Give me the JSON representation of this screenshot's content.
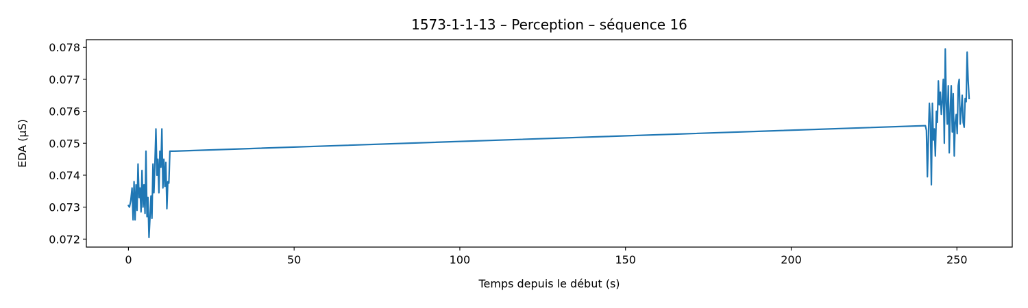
{
  "chart_data": {
    "type": "line",
    "title": "1573-1-1-13 – Perception – séquence 16",
    "xlabel": "Temps depuis le début (s)",
    "ylabel": "EDA (µS)",
    "xlim": [
      -12.7,
      266.7
    ],
    "ylim": [
      0.07175,
      0.07824
    ],
    "x_ticks": [
      0,
      50,
      100,
      150,
      200,
      250
    ],
    "y_ticks": [
      0.072,
      0.073,
      0.074,
      0.075,
      0.076,
      0.077,
      0.078
    ],
    "grid": false,
    "series": [
      {
        "color": "#1f77b4",
        "x": [
          0.0,
          0.3,
          0.7,
          1.1,
          1.4,
          1.7,
          2.0,
          2.3,
          2.6,
          2.9,
          3.2,
          3.5,
          3.8,
          4.1,
          4.4,
          4.7,
          5.0,
          5.3,
          5.6,
          5.9,
          6.2,
          6.5,
          6.8,
          7.1,
          7.4,
          7.7,
          8.0,
          8.3,
          8.6,
          8.9,
          9.2,
          9.5,
          9.8,
          10.1,
          10.4,
          10.7,
          11.0,
          11.3,
          11.6,
          11.9,
          12.2,
          12.5,
          12.8,
          13.1,
          13.4,
          240.5,
          240.8,
          241.1,
          241.4,
          241.7,
          242.0,
          242.3,
          242.6,
          242.9,
          243.2,
          243.5,
          243.8,
          244.1,
          244.4,
          244.7,
          245.0,
          245.3,
          245.6,
          245.9,
          246.2,
          246.5,
          246.8,
          247.1,
          247.4,
          247.7,
          248.0,
          248.3,
          248.6,
          248.9,
          249.2,
          249.5,
          249.8,
          250.1,
          250.4,
          250.7,
          251.0,
          251.3,
          251.6,
          251.9,
          252.2,
          252.5,
          252.8,
          253.1,
          253.4,
          253.7
        ],
        "y": [
          0.07305,
          0.073,
          0.0732,
          0.0736,
          0.0726,
          0.0738,
          0.0726,
          0.0737,
          0.0729,
          0.07435,
          0.0733,
          0.0736,
          0.07285,
          0.07415,
          0.073,
          0.0737,
          0.0728,
          0.07475,
          0.0727,
          0.0733,
          0.07205,
          0.07265,
          0.07335,
          0.07265,
          0.07435,
          0.07345,
          0.0744,
          0.07545,
          0.074,
          0.0745,
          0.07345,
          0.07475,
          0.07425,
          0.07545,
          0.0736,
          0.0745,
          0.07365,
          0.0744,
          0.07295,
          0.0738,
          0.07375,
          0.07475,
          0.07475,
          0.07475,
          0.07475,
          0.07555,
          0.0754,
          0.07395,
          0.0752,
          0.07625,
          0.07565,
          0.0737,
          0.07625,
          0.0751,
          0.07545,
          0.0746,
          0.076,
          0.07565,
          0.07695,
          0.0762,
          0.0766,
          0.0759,
          0.07635,
          0.077,
          0.075,
          0.07795,
          0.07625,
          0.0756,
          0.0768,
          0.0747,
          0.07605,
          0.0768,
          0.07535,
          0.07655,
          0.0746,
          0.07565,
          0.0759,
          0.0753,
          0.0768,
          0.077,
          0.0756,
          0.076,
          0.0765,
          0.07565,
          0.0755,
          0.0764,
          0.0763,
          0.07785,
          0.07695,
          0.0764
        ]
      }
    ]
  }
}
